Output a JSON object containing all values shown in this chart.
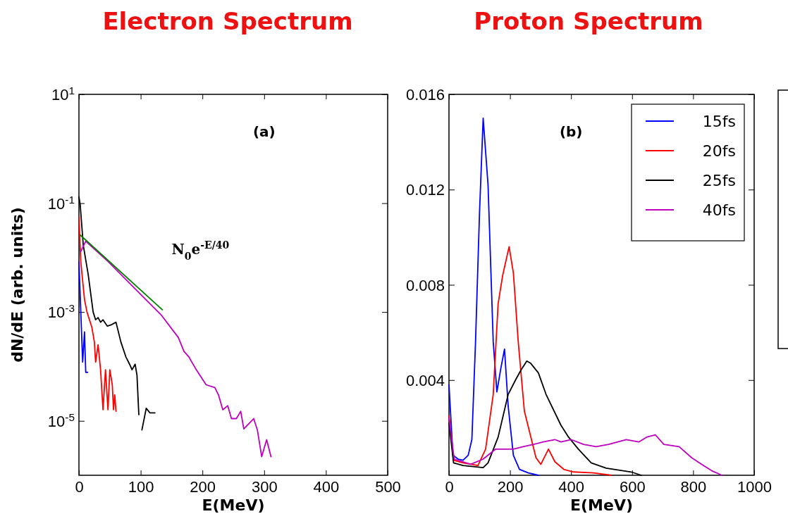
{
  "chart_data": [
    {
      "type": "line",
      "title": "Electron Spectrum",
      "xlabel": "E(MeV)",
      "ylabel": "dN/dE (arb. units)",
      "log": "y",
      "xlim": [
        0,
        500
      ],
      "ylim": [
        1e-06,
        10
      ],
      "xticks": [
        0,
        100,
        200,
        300,
        400,
        500
      ],
      "yticks": [
        {
          "value": 10,
          "label": "10$^{1}$"
        },
        {
          "value": 0.1,
          "label": "10$^{-1}$"
        },
        {
          "value": 0.001,
          "label": "10$^{-3}$"
        },
        {
          "value": 1e-05,
          "label": "10$^{-5}$"
        }
      ],
      "annotations": [
        "(a)",
        "N$_{0}$e$^{-E/40}$"
      ],
      "series": [
        {
          "color": "#0000ff",
          "x": [
            0,
            3,
            6,
            9,
            11,
            14
          ],
          "values": [
            0.0083,
            0.001,
            0.00012,
            0.00043,
            7.8e-05,
            7.8e-05
          ]
        },
        {
          "color": "#ff0000",
          "x": [
            0,
            3,
            9,
            13,
            21,
            25,
            27,
            31,
            35,
            39,
            43,
            47,
            50,
            54,
            56,
            58,
            60
          ],
          "values": [
            0.056,
            0.0083,
            0.0017,
            0.001,
            0.00052,
            0.00028,
            0.00012,
            0.00025,
            8.7e-05,
            1.6e-05,
            8.7e-05,
            1.6e-05,
            8.7e-05,
            4.6e-05,
            1.6e-05,
            3e-05,
            1.5e-05
          ]
        },
        {
          "color": "#000000",
          "x": [
            0,
            2,
            7,
            15,
            23,
            27,
            31,
            35,
            39,
            46,
            52,
            60,
            68,
            76,
            82,
            86,
            91,
            94,
            97,
            100,
            102,
            109,
            115,
            123
          ],
          "values": [
            0.13,
            0.095,
            0.017,
            0.0049,
            0.001,
            0.00072,
            0.00079,
            0.00065,
            0.00072,
            0.00055,
            0.00058,
            0.00065,
            0.00028,
            0.00015,
            0.00011,
            8.7e-05,
            0.00011,
            6.9e-05,
            1.3e-05,
            null,
            6.8e-06,
            1.7e-05,
            1.4e-05,
            1.4e-05
          ]
        },
        {
          "color": "#bf00bf",
          "x": [
            3,
            11,
            48,
            100,
            133,
            161,
            170,
            178,
            190,
            206,
            220,
            226,
            233,
            241,
            247,
            255,
            262,
            267,
            283,
            289,
            296,
            304,
            311
          ],
          "values": [
            0.013,
            0.02,
            0.0083,
            0.0021,
            0.00089,
            0.00034,
            0.00019,
            0.00015,
            8.7e-05,
            4.6e-05,
            4.1e-05,
            3e-05,
            1.6e-05,
            1.9e-05,
            1.1e-05,
            1.1e-05,
            1.5e-05,
            7.1e-06,
            1.1e-05,
            6.8e-06,
            2.2e-06,
            4.5e-06,
            2.2e-06
          ]
        },
        {
          "type": "line",
          "color": "#008000",
          "x": [
            2,
            135
          ],
          "values": [
            0.026,
            0.0011
          ]
        }
      ]
    },
    {
      "type": "line",
      "title": "Proton Spectrum",
      "xlabel": "E(MeV)",
      "xlim": [
        0,
        1000
      ],
      "ylim": [
        0,
        0.016
      ],
      "xticks": [
        0,
        200,
        400,
        600,
        800,
        1000
      ],
      "yticks": [
        0.004,
        0.008,
        0.012,
        0.016
      ],
      "legend": "top right",
      "annotations": [
        "(b)"
      ],
      "series": [
        {
          "name": "15fs",
          "color": "#0000ff",
          "x": [
            0,
            13,
            30,
            46,
            63,
            75,
            87,
            100,
            112,
            128,
            145,
            157,
            170,
            182,
            194,
            211,
            231,
            260,
            293
          ],
          "values": [
            0.0038,
            0.00084,
            0.00068,
            0.00063,
            0.00084,
            0.0015,
            0.0056,
            0.011,
            0.015,
            0.0122,
            0.0056,
            0.0035,
            0.0045,
            0.0053,
            0.0029,
            0.00084,
            0.00025,
            0.0001,
            0
          ]
        },
        {
          "name": "20fs",
          "color": "#ff0000",
          "x": [
            0,
            15,
            46,
            95,
            120,
            145,
            161,
            176,
            197,
            211,
            227,
            247,
            285,
            301,
            326,
            347,
            376,
            408,
            474,
            532
          ],
          "values": [
            0.0025,
            0.00063,
            0.00052,
            0.00041,
            0.0011,
            0.0034,
            0.0072,
            0.0084,
            0.0096,
            0.0085,
            0.0056,
            0.0027,
            0.00074,
            0.00046,
            0.0011,
            0.00057,
            0.00025,
            0.00014,
            0.0001,
            0
          ]
        },
        {
          "name": "25fs",
          "color": "#000000",
          "x": [
            0,
            15,
            46,
            112,
            128,
            161,
            194,
            218,
            235,
            255,
            268,
            293,
            318,
            367,
            392,
            424,
            466,
            515,
            597,
            630
          ],
          "values": [
            0.0022,
            0.00052,
            0.00041,
            0.00032,
            0.00052,
            0.0016,
            0.0034,
            0.004,
            0.0044,
            0.0048,
            0.0047,
            0.0043,
            0.0034,
            0.0021,
            0.0016,
            0.0011,
            0.00052,
            0.0003,
            0.00014,
            0
          ]
        },
        {
          "name": "40fs",
          "color": "#bf00bf",
          "x": [
            0,
            17,
            71,
            112,
            153,
            186,
            211,
            243,
            277,
            309,
            347,
            367,
            400,
            441,
            482,
            523,
            581,
            622,
            647,
            676,
            704,
            754,
            795,
            828,
            861,
            894
          ],
          "values": [
            0.0024,
            0.00068,
            0.00046,
            0.00068,
            0.0011,
            0.0011,
            0.0011,
            0.0012,
            0.0013,
            0.0014,
            0.0015,
            0.0014,
            0.0015,
            0.0013,
            0.0012,
            0.0013,
            0.0015,
            0.0014,
            0.0016,
            0.0017,
            0.0013,
            0.0012,
            0.00074,
            0.00046,
            0.00019,
            0
          ]
        }
      ]
    }
  ]
}
